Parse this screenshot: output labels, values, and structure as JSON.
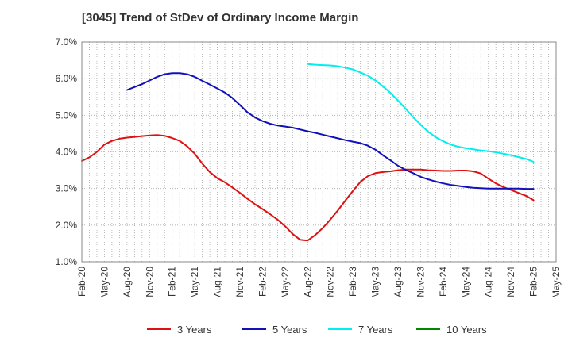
{
  "chart_data": {
    "type": "line",
    "title": "[3045]  Trend of StDev of Ordinary Income Margin",
    "xlabel": "",
    "ylabel": "",
    "ylim": [
      1.0,
      7.0
    ],
    "y_ticks": [
      "1.0%",
      "2.0%",
      "3.0%",
      "4.0%",
      "5.0%",
      "6.0%",
      "7.0%"
    ],
    "x_ticks": [
      "Feb-20",
      "May-20",
      "Aug-20",
      "Nov-20",
      "Feb-21",
      "May-21",
      "Aug-21",
      "Nov-21",
      "Feb-22",
      "May-22",
      "Aug-22",
      "Nov-22",
      "Feb-23",
      "May-23",
      "Aug-23",
      "Nov-23",
      "Feb-24",
      "May-24",
      "Aug-24",
      "Nov-24",
      "Feb-25",
      "May-25"
    ],
    "grid": true,
    "legend_position": "bottom",
    "series": [
      {
        "name": "3 Years",
        "color": "#dd1111",
        "x": [
          "Feb-20",
          "Mar-20",
          "Apr-20",
          "May-20",
          "Jun-20",
          "Jul-20",
          "Aug-20",
          "Sep-20",
          "Oct-20",
          "Nov-20",
          "Dec-20",
          "Jan-21",
          "Feb-21",
          "Mar-21",
          "Apr-21",
          "May-21",
          "Jun-21",
          "Jul-21",
          "Aug-21",
          "Sep-21",
          "Oct-21",
          "Nov-21",
          "Dec-21",
          "Jan-22",
          "Feb-22",
          "Mar-22",
          "Apr-22",
          "May-22",
          "Jun-22",
          "Jul-22",
          "Aug-22",
          "Sep-22",
          "Oct-22",
          "Nov-22",
          "Dec-22",
          "Jan-23",
          "Feb-23",
          "Mar-23",
          "Apr-23",
          "May-23",
          "Jun-23",
          "Jul-23",
          "Aug-23",
          "Sep-23",
          "Oct-23",
          "Nov-23",
          "Dec-23",
          "Jan-24",
          "Feb-24",
          "Mar-24",
          "Apr-24",
          "May-24",
          "Jun-24",
          "Jul-24",
          "Aug-24",
          "Sep-24",
          "Oct-24",
          "Nov-24",
          "Dec-24",
          "Jan-25",
          "Feb-25"
        ],
        "values": [
          3.75,
          3.85,
          4.0,
          4.2,
          4.3,
          4.36,
          4.39,
          4.41,
          4.43,
          4.45,
          4.46,
          4.44,
          4.38,
          4.3,
          4.15,
          3.95,
          3.68,
          3.45,
          3.28,
          3.17,
          3.03,
          2.88,
          2.72,
          2.57,
          2.44,
          2.3,
          2.15,
          1.97,
          1.76,
          1.6,
          1.58,
          1.73,
          1.92,
          2.15,
          2.4,
          2.67,
          2.93,
          3.18,
          3.34,
          3.42,
          3.45,
          3.47,
          3.5,
          3.52,
          3.52,
          3.52,
          3.5,
          3.49,
          3.48,
          3.48,
          3.49,
          3.49,
          3.47,
          3.41,
          3.27,
          3.14,
          3.04,
          2.96,
          2.88,
          2.8,
          2.68
        ]
      },
      {
        "name": "5 Years",
        "color": "#1111bb",
        "x": [
          "Aug-20",
          "Sep-20",
          "Oct-20",
          "Nov-20",
          "Dec-20",
          "Jan-21",
          "Feb-21",
          "Mar-21",
          "Apr-21",
          "May-21",
          "Jun-21",
          "Jul-21",
          "Aug-21",
          "Sep-21",
          "Oct-21",
          "Nov-21",
          "Dec-21",
          "Jan-22",
          "Feb-22",
          "Mar-22",
          "Apr-22",
          "May-22",
          "Jun-22",
          "Jul-22",
          "Aug-22",
          "Sep-22",
          "Oct-22",
          "Nov-22",
          "Dec-22",
          "Jan-23",
          "Feb-23",
          "Mar-23",
          "Apr-23",
          "May-23",
          "Jun-23",
          "Jul-23",
          "Aug-23",
          "Sep-23",
          "Oct-23",
          "Nov-23",
          "Dec-23",
          "Jan-24",
          "Feb-24",
          "Mar-24",
          "Apr-24",
          "May-24",
          "Jun-24",
          "Jul-24",
          "Aug-24",
          "Sep-24",
          "Oct-24",
          "Nov-24",
          "Dec-24",
          "Jan-25",
          "Feb-25"
        ],
        "values": [
          5.69,
          5.77,
          5.85,
          5.95,
          6.05,
          6.12,
          6.15,
          6.15,
          6.12,
          6.05,
          5.94,
          5.84,
          5.73,
          5.62,
          5.47,
          5.28,
          5.08,
          4.94,
          4.84,
          4.77,
          4.72,
          4.69,
          4.66,
          4.61,
          4.56,
          4.52,
          4.47,
          4.42,
          4.37,
          4.32,
          4.28,
          4.24,
          4.17,
          4.06,
          3.91,
          3.77,
          3.62,
          3.51,
          3.42,
          3.32,
          3.25,
          3.19,
          3.14,
          3.1,
          3.07,
          3.04,
          3.02,
          3.01,
          3.0,
          3.0,
          3.0,
          3.0,
          3.0,
          2.99,
          2.99
        ]
      },
      {
        "name": "7 Years",
        "color": "#00eeee",
        "x": [
          "Aug-22",
          "Sep-22",
          "Oct-22",
          "Nov-22",
          "Dec-22",
          "Jan-23",
          "Feb-23",
          "Mar-23",
          "Apr-23",
          "May-23",
          "Jun-23",
          "Jul-23",
          "Aug-23",
          "Sep-23",
          "Oct-23",
          "Nov-23",
          "Dec-23",
          "Jan-24",
          "Feb-24",
          "Mar-24",
          "Apr-24",
          "May-24",
          "Jun-24",
          "Jul-24",
          "Aug-24",
          "Sep-24",
          "Oct-24",
          "Nov-24",
          "Dec-24",
          "Jan-25",
          "Feb-25"
        ],
        "values": [
          6.4,
          6.38,
          6.37,
          6.36,
          6.34,
          6.3,
          6.25,
          6.17,
          6.08,
          5.95,
          5.79,
          5.61,
          5.4,
          5.18,
          4.95,
          4.74,
          4.55,
          4.4,
          4.29,
          4.2,
          4.14,
          4.1,
          4.07,
          4.04,
          4.02,
          3.99,
          3.95,
          3.91,
          3.86,
          3.81,
          3.73
        ]
      },
      {
        "name": "10 Years",
        "color": "#008800",
        "x": [],
        "values": []
      }
    ]
  }
}
